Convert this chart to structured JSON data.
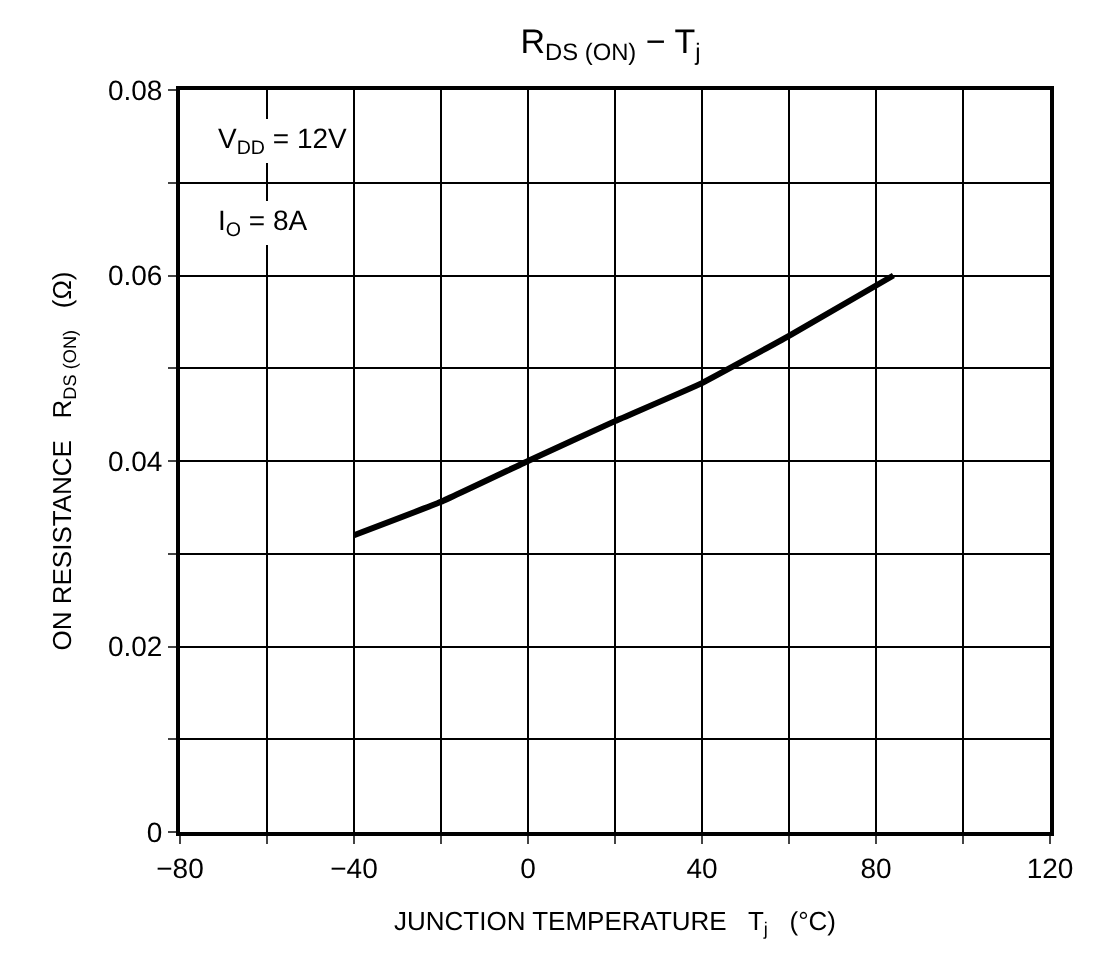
{
  "chart_data": {
    "type": "line",
    "title": "R$_{DS (ON)}$ − T$_{j}$",
    "xlabel": "JUNCTION TEMPERATURE   T$_{j}$   (°C)",
    "ylabel": "ON RESISTANCE   R$_{DS (ON)}$   (Ω)",
    "annotations": [
      "V$_{DD}$ = 12V",
      "I$_{O}$ = 8A"
    ],
    "x": [
      -40,
      -20,
      0,
      20,
      40,
      60,
      84
    ],
    "series": [
      {
        "color": "#000000",
        "values": [
          0.032,
          0.0356,
          0.04,
          0.0443,
          0.0484,
          0.0535,
          0.06
        ]
      }
    ],
    "xlim": [
      -80,
      120
    ],
    "xticks": [
      -80,
      {
        "value": -60,
        "label": null
      },
      -40,
      {
        "value": -20,
        "label": null
      },
      0,
      {
        "value": 20,
        "label": null
      },
      40,
      {
        "value": 60,
        "label": null
      },
      80,
      {
        "value": 100,
        "label": null
      },
      120
    ],
    "ylim": [
      0,
      0.08
    ],
    "yticks": [
      0,
      {
        "value": 0.01,
        "label": null
      },
      0.02,
      {
        "value": 0.03,
        "label": null
      },
      0.04,
      {
        "value": 0.05,
        "label": null
      },
      0.06,
      {
        "value": 0.07,
        "label": null
      },
      0.08
    ],
    "grid": true,
    "marker": "none",
    "line_style": "solid"
  }
}
